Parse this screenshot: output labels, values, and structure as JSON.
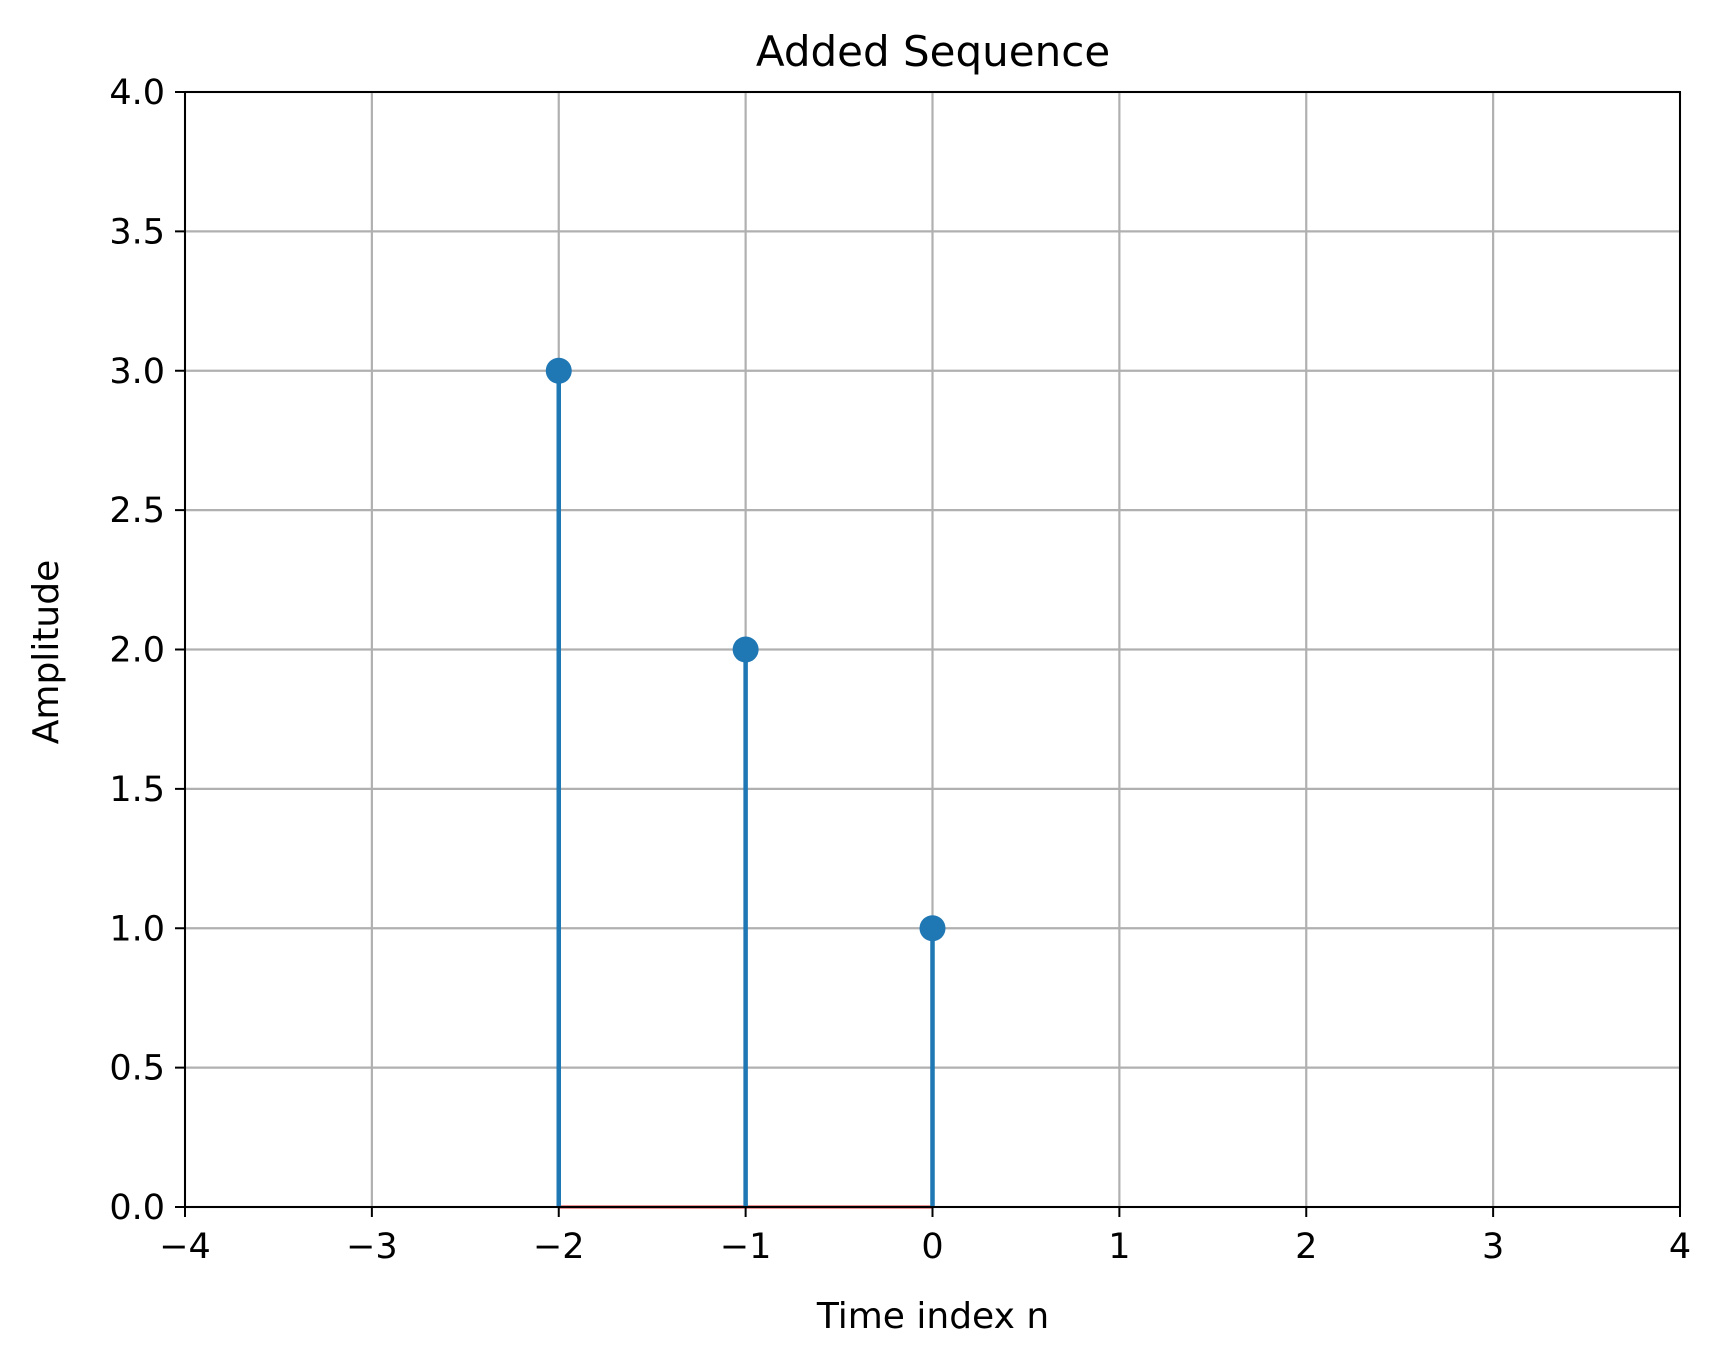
{
  "chart_data": {
    "type": "stem",
    "title": "Added Sequence",
    "xlabel": "Time index n",
    "ylabel": "Amplitude",
    "xlim": [
      -4,
      4
    ],
    "ylim": [
      0.0,
      4.0
    ],
    "grid": true,
    "x_ticks": [
      -4,
      -3,
      -2,
      -1,
      0,
      1,
      2,
      3,
      4
    ],
    "x_tick_labels": [
      "−4",
      "−3",
      "−2",
      "−1",
      "0",
      "1",
      "2",
      "3",
      "4"
    ],
    "y_ticks": [
      0.0,
      0.5,
      1.0,
      1.5,
      2.0,
      2.5,
      3.0,
      3.5,
      4.0
    ],
    "y_tick_labels": [
      "0.0",
      "0.5",
      "1.0",
      "1.5",
      "2.0",
      "2.5",
      "3.0",
      "3.5",
      "4.0"
    ],
    "series": [
      {
        "name": "added sequence",
        "x": [
          -2,
          -1,
          0
        ],
        "values": [
          3,
          2,
          1
        ]
      }
    ],
    "baseline": {
      "value": 0,
      "from": -2,
      "to": 0
    },
    "colors": {
      "stem": "#1f77b4",
      "baseline": "#d62728",
      "grid": "#b0b0b0",
      "axes": "#000000"
    }
  }
}
